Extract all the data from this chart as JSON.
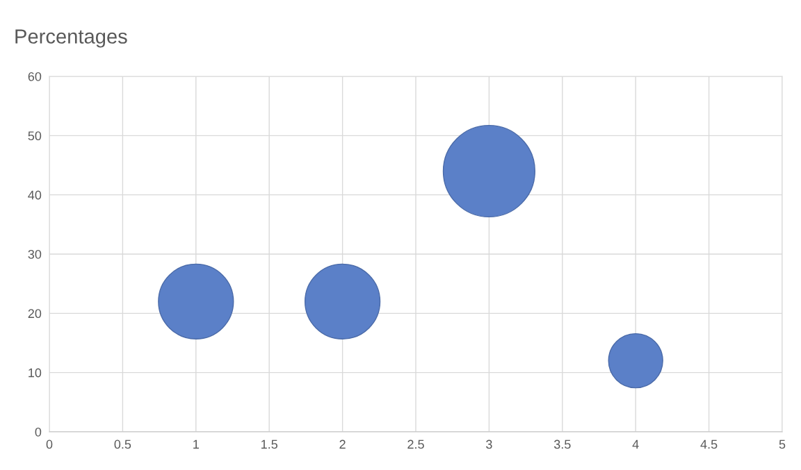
{
  "chart_data": {
    "type": "bubble",
    "title": "Percentages",
    "x": [
      1,
      2,
      3,
      4
    ],
    "series": [
      {
        "color": "#5b80c8",
        "values": [
          22,
          22,
          44,
          12
        ],
        "sizes": [
          0.67,
          0.67,
          1,
          0.35
        ]
      }
    ],
    "xlim": [
      0,
      5
    ],
    "xticks": [
      0,
      0.5,
      1,
      1.5,
      2,
      2.5,
      3,
      3.5,
      4,
      4.5,
      5
    ],
    "ylim": [
      0,
      60
    ],
    "yticks": [
      0,
      10,
      20,
      30,
      40,
      50,
      60
    ],
    "grid": true
  }
}
